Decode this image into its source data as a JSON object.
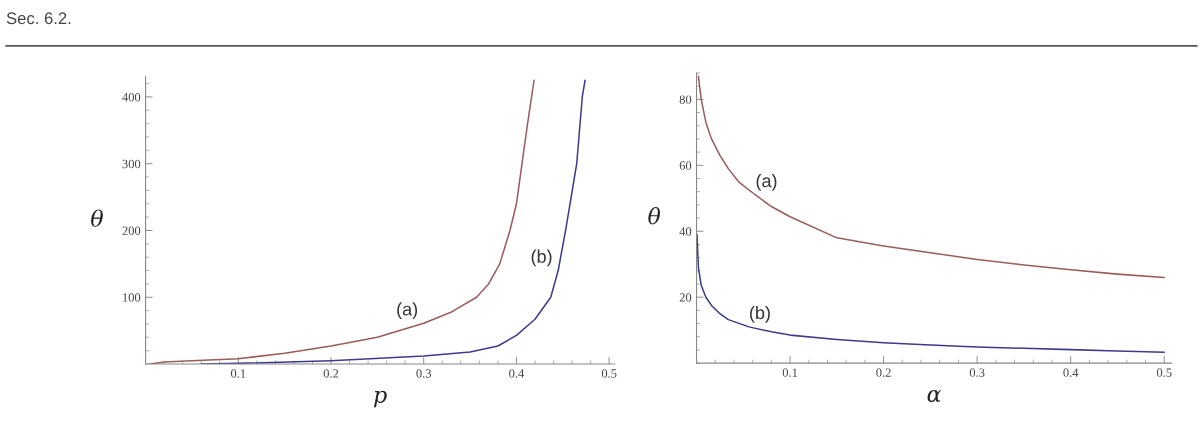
{
  "chart_data": [
    {
      "type": "line",
      "title": "Sec. 6.2.",
      "xlabel": "p",
      "ylabel": "θ",
      "xlim": [
        0,
        0.506
      ],
      "ylim": [
        0,
        430
      ],
      "xticks": [
        0.1,
        0.2,
        0.3,
        0.4,
        0.5
      ],
      "yticks": [
        100,
        200,
        300,
        400
      ],
      "grid": false,
      "legend": false,
      "annotations": [
        {
          "text": "(a)",
          "x": 0.3,
          "y": 61
        },
        {
          "text": "(b)",
          "x": 0.445,
          "y": 140
        }
      ],
      "series": [
        {
          "color": "#9a5c5c",
          "x": [
            0.005,
            0.02,
            0.05,
            0.1,
            0.15,
            0.2,
            0.25,
            0.3,
            0.33,
            0.357,
            0.37,
            0.382,
            0.393,
            0.4,
            0.406,
            0.412,
            0.419
          ],
          "values": [
            0,
            3,
            5,
            8,
            16,
            27,
            40,
            61,
            78,
            100,
            120,
            150,
            200,
            240,
            300,
            360,
            425
          ]
        },
        {
          "color": "#3c3c8c",
          "x": [
            0.06,
            0.1,
            0.2,
            0.3,
            0.35,
            0.38,
            0.4,
            0.42,
            0.437,
            0.445,
            0.453,
            0.459,
            0.465,
            0.471,
            0.474
          ],
          "values": [
            0,
            1,
            5,
            12,
            18,
            27,
            43,
            67,
            100,
            140,
            200,
            250,
            300,
            400,
            425
          ]
        }
      ]
    },
    {
      "type": "line",
      "xlabel": "α",
      "ylabel": "θ",
      "xlim": [
        0,
        0.508
      ],
      "ylim": [
        0,
        88
      ],
      "xticks": [
        0.1,
        0.2,
        0.3,
        0.4,
        0.5
      ],
      "yticks": [
        20,
        40,
        60,
        80
      ],
      "grid": false,
      "legend": false,
      "annotations": [
        {
          "text": "(a)",
          "x": 0.063,
          "y": 51
        },
        {
          "text": "(b)",
          "x": 0.056,
          "y": 11
        }
      ],
      "series": [
        {
          "color": "#9a5c5c",
          "x": [
            0.002,
            0.005,
            0.01,
            0.016,
            0.025,
            0.034,
            0.045,
            0.063,
            0.08,
            0.1,
            0.15,
            0.2,
            0.25,
            0.3,
            0.35,
            0.4,
            0.45,
            0.5
          ],
          "values": [
            87,
            80,
            73,
            68,
            63,
            59,
            55,
            51,
            47.5,
            44.4,
            38,
            35.5,
            33.5,
            31.4,
            29.8,
            28.3,
            27,
            26
          ]
        },
        {
          "color": "#3c3c8c",
          "x": [
            0.0005,
            0.002,
            0.005,
            0.01,
            0.016,
            0.025,
            0.034,
            0.056,
            0.08,
            0.1,
            0.15,
            0.2,
            0.25,
            0.3,
            0.35,
            0.4,
            0.45,
            0.5
          ],
          "values": [
            39,
            29,
            23.6,
            20,
            17.5,
            15,
            13.2,
            11,
            9.5,
            8.5,
            7.2,
            6.2,
            5.5,
            4.9,
            4.5,
            4.1,
            3.7,
            3.3
          ]
        }
      ]
    }
  ]
}
